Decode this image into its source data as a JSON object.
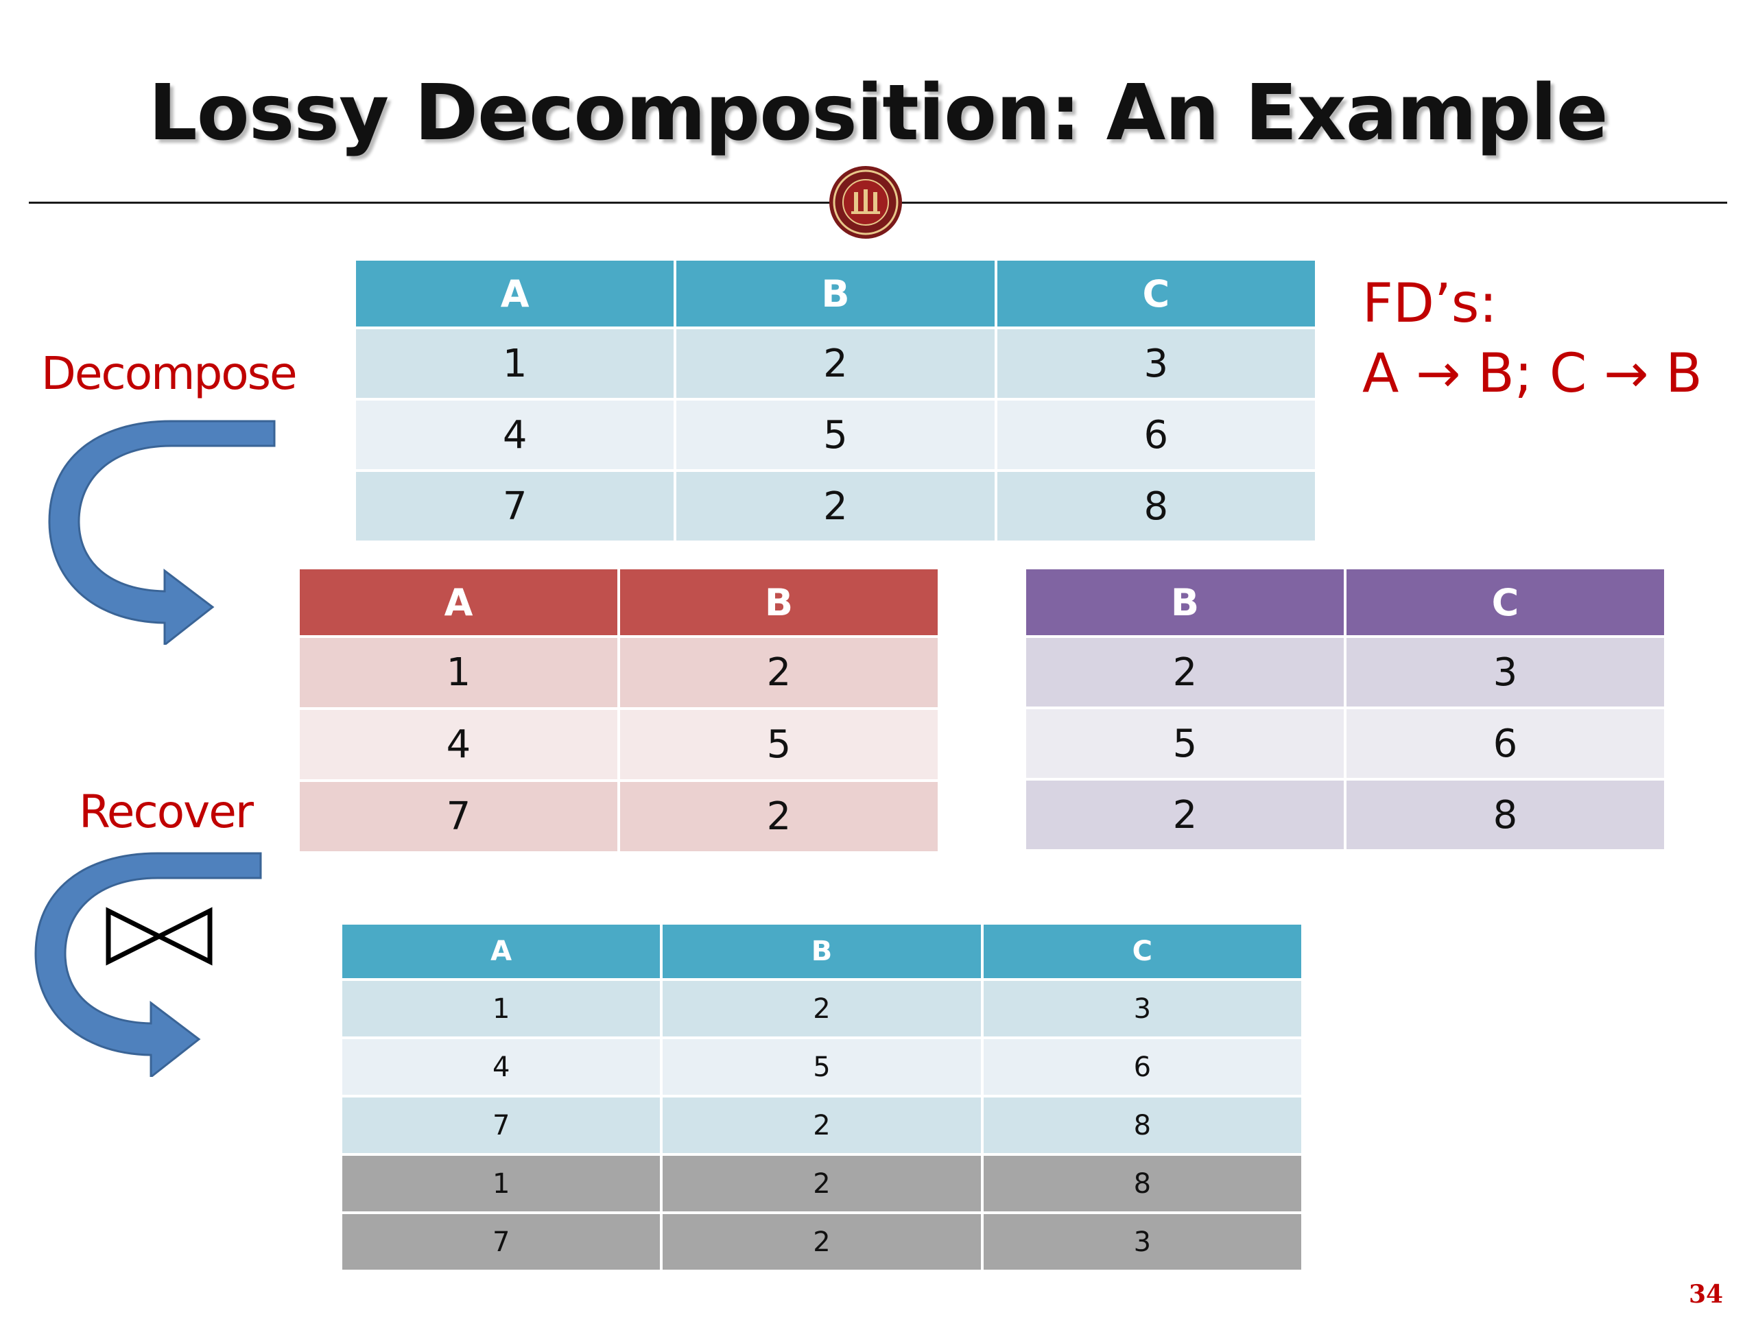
{
  "slide": {
    "title": "Lossy Decomposition: An Example",
    "page_number": "34"
  },
  "labels": {
    "decompose": "Decompose",
    "recover": "Recover",
    "fd_title": "FD’s:",
    "fd_rules": "A → B; C → B"
  },
  "original_table": {
    "headers": [
      "A",
      "B",
      "C"
    ],
    "rows": [
      [
        "1",
        "2",
        "3"
      ],
      [
        "4",
        "5",
        "6"
      ],
      [
        "7",
        "2",
        "8"
      ]
    ]
  },
  "ab_table": {
    "headers": [
      "A",
      "B"
    ],
    "rows": [
      [
        "1",
        "2"
      ],
      [
        "4",
        "5"
      ],
      [
        "7",
        "2"
      ]
    ]
  },
  "bc_table": {
    "headers": [
      "B",
      "C"
    ],
    "rows": [
      [
        "2",
        "3"
      ],
      [
        "5",
        "6"
      ],
      [
        "2",
        "8"
      ]
    ]
  },
  "recovered_table": {
    "headers": [
      "A",
      "B",
      "C"
    ],
    "rows": [
      [
        "1",
        "2",
        "3"
      ],
      [
        "4",
        "5",
        "6"
      ],
      [
        "7",
        "2",
        "8"
      ],
      [
        "1",
        "2",
        "8"
      ],
      [
        "7",
        "2",
        "3"
      ]
    ]
  },
  "colors": {
    "title_text": "#111111",
    "label_red": "#c00000",
    "teal_header": "#4aaac6",
    "red_header": "#c0504d",
    "purple_header": "#8064a2",
    "spurious_row": "#a6a6a6",
    "arrow_blue": "#4f81bd"
  },
  "icons": {
    "seal": "university-seal-icon",
    "decompose_arrow": "curved-arrow-icon",
    "recover_arrow": "curved-arrow-icon",
    "join": "natural-join-bowtie-icon"
  }
}
